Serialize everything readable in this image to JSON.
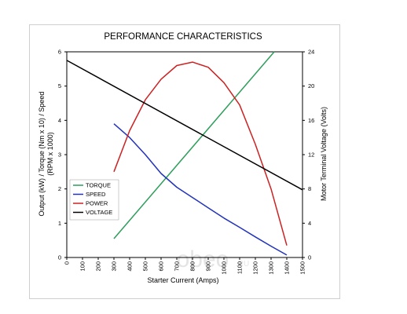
{
  "chart_data": {
    "type": "line",
    "title": "PERFORMANCE CHARACTERISTICS",
    "xlabel": "Starter Current (Amps)",
    "ylabel_left_line1": "Output (kW) / Torque (Nm x 10) / Speed",
    "ylabel_left_line2": "(RPM x 1000)",
    "ylabel_right": "Motor Terminal Voltage (Volts)",
    "xlim": [
      0,
      1500
    ],
    "ylim_left": [
      0,
      6
    ],
    "ylim_right": [
      0,
      24
    ],
    "x_ticks": [
      "0",
      "100",
      "200",
      "300",
      "400",
      "500",
      "600",
      "700",
      "800",
      "900",
      "1000",
      "1100",
      "1200",
      "1300",
      "1400",
      "1500"
    ],
    "y_left_ticks": [
      "0",
      "1",
      "2",
      "3",
      "4",
      "5",
      "6"
    ],
    "y_right_ticks": [
      "0",
      "4",
      "8",
      "12",
      "16",
      "20",
      "24"
    ],
    "grid": false,
    "legend_position": "left-middle",
    "series": [
      {
        "name": "TORQUE",
        "color": "#2e9e5b",
        "axis": "left",
        "x": [
          300,
          1320
        ],
        "y": [
          0.55,
          6.0
        ]
      },
      {
        "name": "SPEED",
        "color": "#2233bb",
        "axis": "left",
        "x": [
          300,
          400,
          500,
          600,
          700,
          800,
          900,
          1000,
          1100,
          1200,
          1300,
          1400
        ],
        "y": [
          3.9,
          3.5,
          3.0,
          2.45,
          2.05,
          1.75,
          1.45,
          1.15,
          0.88,
          0.6,
          0.33,
          0.07
        ]
      },
      {
        "name": "POWER",
        "color": "#cc2222",
        "axis": "left",
        "x": [
          300,
          400,
          500,
          600,
          700,
          800,
          900,
          1000,
          1100,
          1200,
          1300,
          1400
        ],
        "y": [
          2.5,
          3.7,
          4.6,
          5.2,
          5.6,
          5.7,
          5.55,
          5.1,
          4.45,
          3.3,
          2.0,
          0.35
        ]
      },
      {
        "name": "VOLTAGE",
        "color": "#000000",
        "axis": "right",
        "x": [
          0,
          1500
        ],
        "y": [
          23.0,
          7.9
        ]
      }
    ]
  },
  "watermark": {
    "text": "obeo",
    "suffix": ".RU"
  }
}
